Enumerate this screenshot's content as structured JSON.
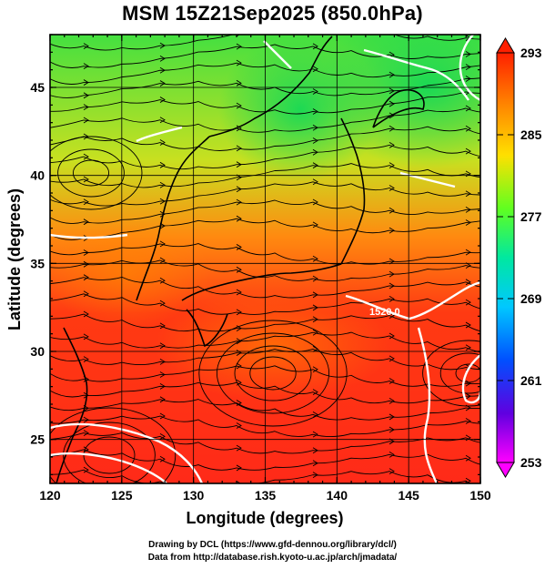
{
  "title": "MSM 15Z21Sep2025 (850.0hPa)",
  "axes": {
    "xlabel": "Longitude (degrees)",
    "ylabel": "Latitude  (degrees)",
    "xlim": [
      120,
      150
    ],
    "ylim": [
      22.5,
      48
    ],
    "xticks": [
      "120",
      "125",
      "130",
      "135",
      "140",
      "145",
      "150"
    ],
    "yticks": [
      "25",
      "30",
      "35",
      "40",
      "45"
    ]
  },
  "colorbar": {
    "labels": [
      "293",
      "285",
      "277",
      "269",
      "261",
      "253"
    ],
    "range": [
      253,
      293
    ],
    "colors": [
      "#ff00ff",
      "#0030ff",
      "#00d8ff",
      "#00ff40",
      "#ffff00",
      "#ff0000"
    ]
  },
  "contour_label": "1520.0",
  "credit": {
    "line1": "Drawing by DCL (https://www.gfd-dennou.org/library/dcl/)",
    "line2": "Data from http://database.rish.kyoto-u.ac.jp/arch/jmadata/"
  }
}
